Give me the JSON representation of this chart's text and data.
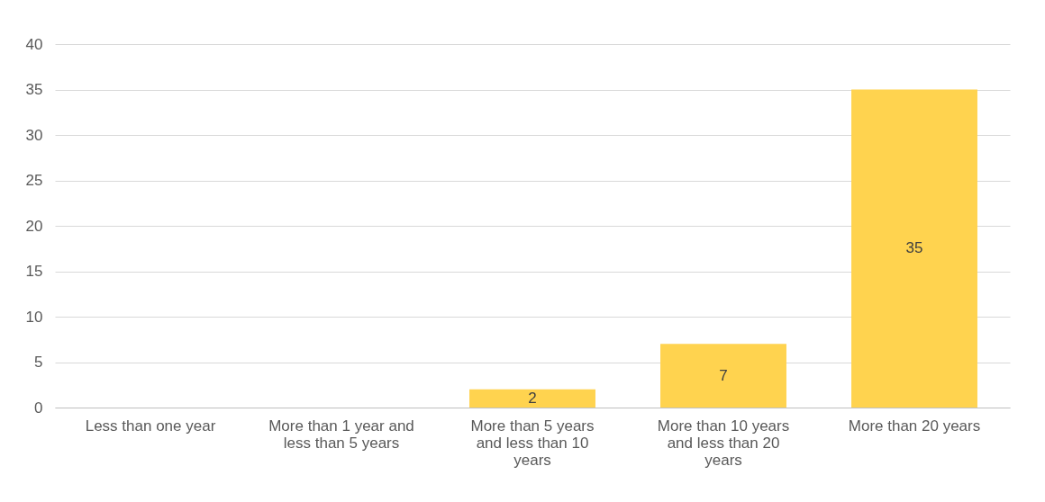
{
  "chart_data": {
    "type": "bar",
    "categories": [
      "Less than one year",
      "More than 1 year and less than 5 years",
      "More than 5 years and less than 10 years",
      "More than 10 years and less than 20 years",
      "More than 20 years"
    ],
    "values": [
      0,
      0,
      2,
      7,
      35
    ],
    "color": "#ffd34f",
    "value_labels": [
      null,
      null,
      "2",
      "7",
      "35"
    ],
    "ylim": [
      0,
      40
    ],
    "yticks": [
      0,
      5,
      10,
      15,
      20,
      25,
      30,
      35,
      40
    ],
    "grid": "y"
  }
}
